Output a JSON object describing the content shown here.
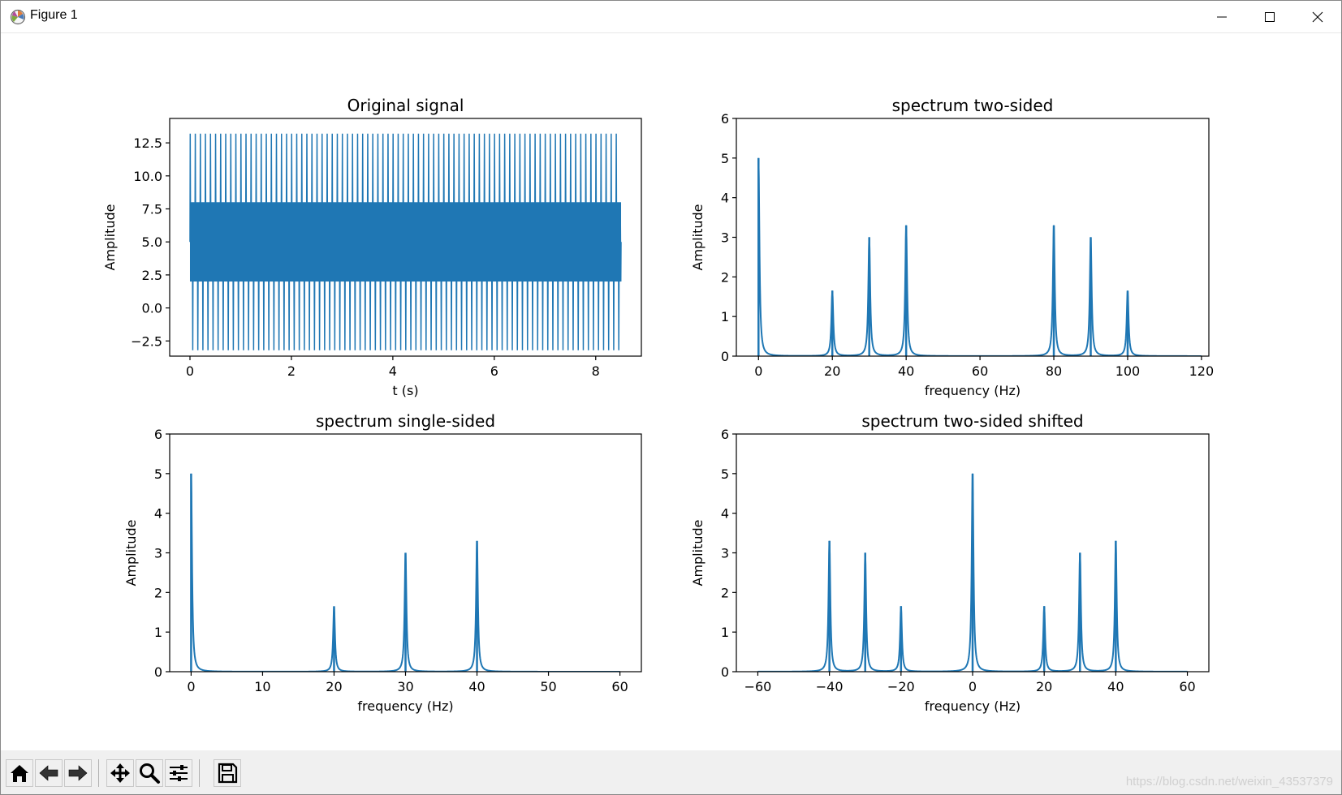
{
  "window": {
    "title": "Figure 1",
    "buttons": {
      "minimize": "minimize",
      "maximize": "maximize",
      "close": "close"
    }
  },
  "toolbar": {
    "buttons": [
      {
        "name": "home",
        "icon": "home-icon"
      },
      {
        "name": "back",
        "icon": "arrow-left-icon"
      },
      {
        "name": "forward",
        "icon": "arrow-right-icon"
      },
      {
        "name": "pan",
        "icon": "move-icon"
      },
      {
        "name": "zoom",
        "icon": "magnifier-icon"
      },
      {
        "name": "configure-subplots",
        "icon": "sliders-icon"
      },
      {
        "name": "save",
        "icon": "floppy-disk-icon"
      }
    ],
    "watermark": "https://blog.csdn.net/weixin_43537379"
  },
  "colors": {
    "line": "#1f77b4",
    "axis": "#000000",
    "background": "#ffffff"
  },
  "chart_data": [
    {
      "type": "line",
      "title": "Original signal",
      "xlabel": "t (s)",
      "ylabel": "Amplitude",
      "xlim": [
        -0.4,
        8.9
      ],
      "ylim": [
        -3.65,
        14.35
      ],
      "xticks": [
        0,
        2,
        4,
        6,
        8
      ],
      "xtick_labels": [
        "0",
        "2",
        "4",
        "6",
        "8"
      ],
      "yticks": [
        -2.5,
        0.0,
        2.5,
        5.0,
        7.5,
        10.0,
        12.5
      ],
      "ytick_labels": [
        "−2.5",
        "0.0",
        "2.5",
        "5.0",
        "7.5",
        "10.0",
        "12.5"
      ],
      "signal": {
        "t_start": 0,
        "t_end": 8.5,
        "y_min": -3.2,
        "y_max": 13.2,
        "dense_band": [
          2.0,
          8.0
        ],
        "offset": 5.0
      }
    },
    {
      "type": "line",
      "title": "spectrum two-sided",
      "xlabel": "frequency  (Hz)",
      "ylabel": "Amplitude",
      "xlim": [
        -6,
        122
      ],
      "ylim": [
        0,
        6
      ],
      "xticks": [
        0,
        20,
        40,
        60,
        80,
        100,
        120
      ],
      "xtick_labels": [
        "0",
        "20",
        "40",
        "60",
        "80",
        "100",
        "120"
      ],
      "yticks": [
        0,
        1,
        2,
        3,
        4,
        5,
        6
      ],
      "ytick_labels": [
        "0",
        "1",
        "2",
        "3",
        "4",
        "5",
        "6"
      ],
      "x_range": [
        0,
        120
      ],
      "peaks": [
        {
          "x": 0,
          "y": 5.0
        },
        {
          "x": 20,
          "y": 1.65
        },
        {
          "x": 30,
          "y": 3.0
        },
        {
          "x": 40,
          "y": 3.3
        },
        {
          "x": 80,
          "y": 3.3
        },
        {
          "x": 90,
          "y": 3.0
        },
        {
          "x": 100,
          "y": 1.65
        }
      ]
    },
    {
      "type": "line",
      "title": "spectrum single-sided",
      "xlabel": "frequency  (Hz)",
      "ylabel": "Amplitude",
      "xlim": [
        -3,
        63
      ],
      "ylim": [
        0,
        6
      ],
      "xticks": [
        0,
        10,
        20,
        30,
        40,
        50,
        60
      ],
      "xtick_labels": [
        "0",
        "10",
        "20",
        "30",
        "40",
        "50",
        "60"
      ],
      "yticks": [
        0,
        1,
        2,
        3,
        4,
        5,
        6
      ],
      "ytick_labels": [
        "0",
        "1",
        "2",
        "3",
        "4",
        "5",
        "6"
      ],
      "x_range": [
        0,
        60
      ],
      "peaks": [
        {
          "x": 0,
          "y": 5.0
        },
        {
          "x": 20,
          "y": 1.65
        },
        {
          "x": 30,
          "y": 3.0
        },
        {
          "x": 40,
          "y": 3.3
        }
      ]
    },
    {
      "type": "line",
      "title": "spectrum two-sided shifted",
      "xlabel": "frequency  (Hz)",
      "ylabel": "Amplitude",
      "xlim": [
        -66,
        66
      ],
      "ylim": [
        0,
        6
      ],
      "xticks": [
        -60,
        -40,
        -20,
        0,
        20,
        40,
        60
      ],
      "xtick_labels": [
        "−60",
        "−40",
        "−20",
        "0",
        "20",
        "40",
        "60"
      ],
      "yticks": [
        0,
        1,
        2,
        3,
        4,
        5,
        6
      ],
      "ytick_labels": [
        "0",
        "1",
        "2",
        "3",
        "4",
        "5",
        "6"
      ],
      "x_range": [
        -60,
        60
      ],
      "peaks": [
        {
          "x": -40,
          "y": 3.3
        },
        {
          "x": -30,
          "y": 3.0
        },
        {
          "x": -20,
          "y": 1.65
        },
        {
          "x": 0,
          "y": 5.0
        },
        {
          "x": 20,
          "y": 1.65
        },
        {
          "x": 30,
          "y": 3.0
        },
        {
          "x": 40,
          "y": 3.3
        }
      ]
    }
  ]
}
